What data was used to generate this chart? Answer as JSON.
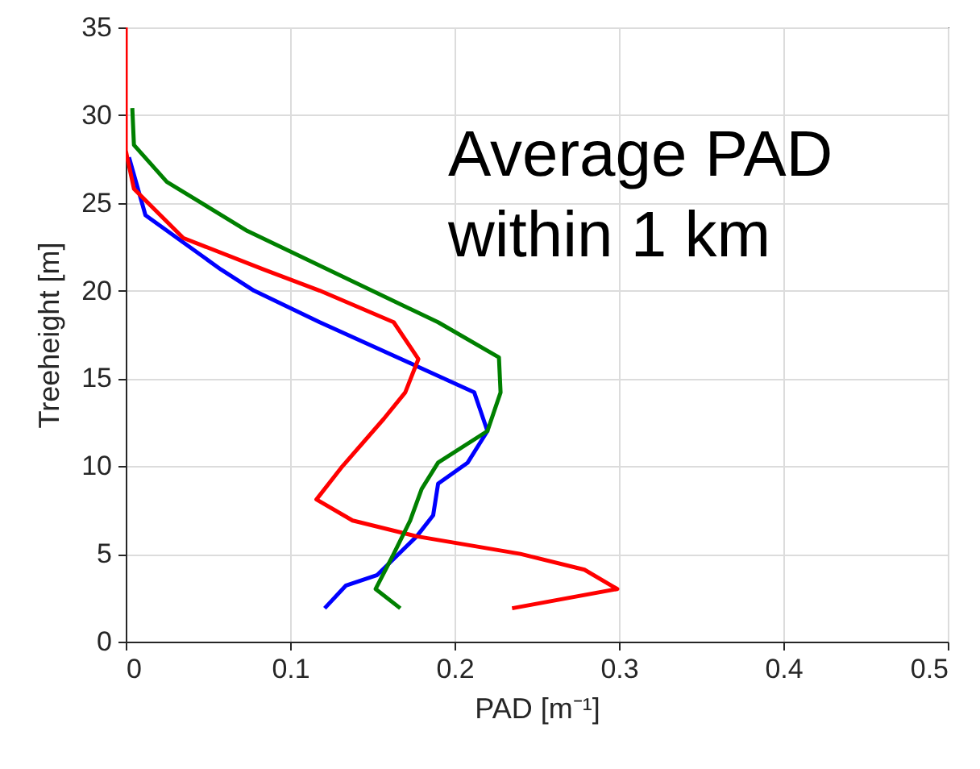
{
  "chart_data": {
    "type": "line",
    "xlabel": "PAD [m⁻¹]",
    "ylabel": "Treeheight [m]",
    "xlim": [
      0,
      0.5
    ],
    "xticks": [
      0,
      0.1,
      0.2,
      0.3,
      0.4,
      0.5
    ],
    "ylim": [
      0,
      35
    ],
    "yticks": [
      0,
      5,
      10,
      15,
      20,
      25,
      30,
      35
    ],
    "grid": true,
    "annotations": [
      "Average PAD",
      "within 1 km"
    ],
    "series": [
      {
        "color": "#0000ff",
        "x": [
          0.002,
          0.012,
          0.058,
          0.078,
          0.118,
          0.177,
          0.212,
          0.22,
          0.208,
          0.19,
          0.187,
          0.177,
          0.153,
          0.134,
          0.121
        ],
        "values": [
          27.6,
          24.3,
          21.2,
          20,
          18.2,
          15.7,
          14.2,
          12,
          10.2,
          9,
          7.2,
          6,
          3.8,
          3.2,
          1.9
        ]
      },
      {
        "color": "#ff0000",
        "x": [
          0,
          0,
          0.005,
          0.035,
          0.084,
          0.118,
          0.163,
          0.178,
          0.17,
          0.157,
          0.131,
          0.116,
          0.138,
          0.177,
          0.24,
          0.279,
          0.299,
          0.235
        ],
        "values": [
          35,
          28,
          25.8,
          23,
          21.2,
          20,
          18.2,
          16.1,
          14.2,
          12.7,
          9.9,
          8.1,
          6.9,
          6,
          5,
          4.1,
          3,
          1.9
        ]
      },
      {
        "color": "#008000",
        "x": [
          0.004,
          0.005,
          0.025,
          0.074,
          0.19,
          0.227,
          0.228,
          0.22,
          0.19,
          0.18,
          0.173,
          0.163,
          0.152,
          0.167
        ],
        "values": [
          30.4,
          28.3,
          26.2,
          23.4,
          18.2,
          16.2,
          14.2,
          12,
          10.2,
          8.7,
          6.9,
          5,
          3,
          1.9
        ]
      }
    ]
  }
}
